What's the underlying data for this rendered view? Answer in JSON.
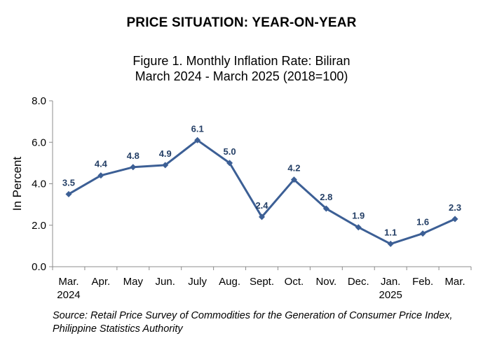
{
  "heading": "PRICE SITUATION: YEAR-ON-YEAR",
  "chart_data": {
    "type": "line",
    "title_line1": "Figure 1. Monthly Inflation Rate: Biliran",
    "title_line2": "March 2024 - March 2025 (2018=100)",
    "ylabel": "In Percent",
    "xlabel": "",
    "ylim": [
      0,
      8
    ],
    "yticks": [
      "0.0",
      "2.0",
      "4.0",
      "6.0",
      "8.0"
    ],
    "ytick_values": [
      0,
      2,
      4,
      6,
      8
    ],
    "categories": [
      [
        "Mar.",
        "2024"
      ],
      [
        "Apr."
      ],
      [
        "May"
      ],
      [
        "Jun."
      ],
      [
        "July"
      ],
      [
        "Aug."
      ],
      [
        "Sept."
      ],
      [
        "Oct."
      ],
      [
        "Nov."
      ],
      [
        "Dec."
      ],
      [
        "Jan.",
        "2025"
      ],
      [
        "Feb."
      ],
      [
        "Mar."
      ]
    ],
    "series": [
      {
        "values": [
          3.5,
          4.4,
          4.8,
          4.9,
          6.1,
          5.0,
          2.4,
          4.2,
          2.8,
          1.9,
          1.1,
          1.6,
          2.3
        ],
        "labels": [
          "3.5",
          "4.4",
          "4.8",
          "4.9",
          "6.1",
          "5.0",
          "2.4",
          "4.2",
          "2.8",
          "1.9",
          "1.1",
          "1.6",
          "2.3"
        ],
        "color": "#3c5f95"
      }
    ],
    "label_color": "#243f66",
    "axis_color": "#8c8c8c",
    "grid": false,
    "legend": "none"
  },
  "source": "Source: Retail Price Survey of Commodities for the Generation of Consumer Price Index, Philippine Statistics Authority"
}
